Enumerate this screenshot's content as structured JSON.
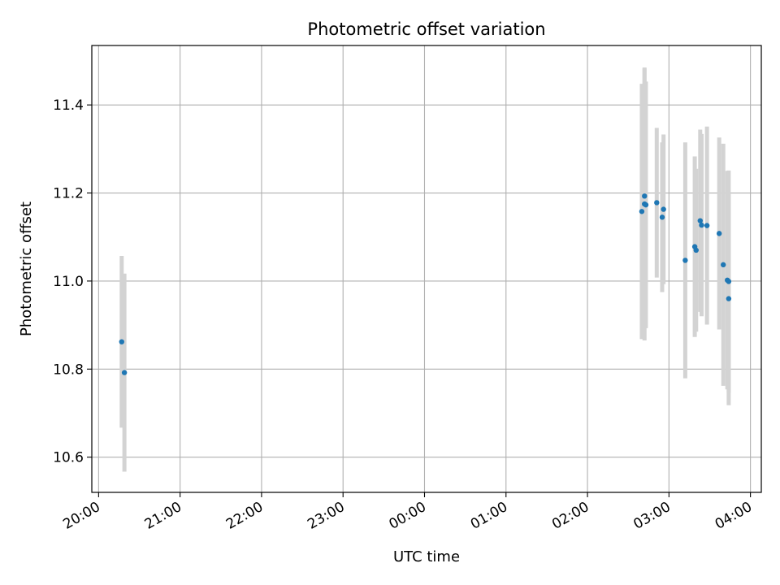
{
  "chart_data": {
    "type": "scatter",
    "title": "Photometric offset variation",
    "xlabel": "UTC time",
    "ylabel": "Photometric offset",
    "x_tick_labels": [
      "20:00",
      "21:00",
      "22:00",
      "23:00",
      "00:00",
      "01:00",
      "02:00",
      "03:00",
      "04:00"
    ],
    "y_tick_values": [
      10.6,
      10.8,
      11.0,
      11.2,
      11.4
    ],
    "y_tick_labels": [
      "10.6",
      "10.8",
      "11.0",
      "11.2",
      "11.4"
    ],
    "x_range": [
      "19:55",
      "04:08"
    ],
    "ylim": [
      10.52,
      11.535
    ],
    "grid": true,
    "colors": {
      "marker": "#1f77b4",
      "errorbar": "#d3d3d3",
      "grid": "#b0b0b0"
    },
    "points": [
      {
        "time": "20:17",
        "offset": 10.862,
        "error": 0.195
      },
      {
        "time": "20:19",
        "offset": 10.792,
        "error": 0.225
      },
      {
        "time": "02:40",
        "offset": 11.158,
        "error": 0.29
      },
      {
        "time": "02:42",
        "offset": 11.193,
        "error": 0.29
      },
      {
        "time": "02:42",
        "offset": 11.175,
        "error": 0.31
      },
      {
        "time": "02:43",
        "offset": 11.173,
        "error": 0.28
      },
      {
        "time": "02:51",
        "offset": 11.178,
        "error": 0.17
      },
      {
        "time": "02:55",
        "offset": 11.145,
        "error": 0.17
      },
      {
        "time": "02:56",
        "offset": 11.163,
        "error": 0.17
      },
      {
        "time": "03:12",
        "offset": 11.047,
        "error": 0.268
      },
      {
        "time": "03:19",
        "offset": 11.078,
        "error": 0.205
      },
      {
        "time": "03:20",
        "offset": 11.07,
        "error": 0.185
      },
      {
        "time": "03:23",
        "offset": 11.137,
        "error": 0.207
      },
      {
        "time": "03:24",
        "offset": 11.127,
        "error": 0.207
      },
      {
        "time": "03:28",
        "offset": 11.126,
        "error": 0.225
      },
      {
        "time": "03:37",
        "offset": 11.108,
        "error": 0.218
      },
      {
        "time": "03:40",
        "offset": 11.037,
        "error": 0.275
      },
      {
        "time": "03:43",
        "offset": 11.002,
        "error": 0.248
      },
      {
        "time": "03:44",
        "offset": 10.999,
        "error": 0.252
      },
      {
        "time": "03:44",
        "offset": 10.96,
        "error": 0.242
      }
    ]
  }
}
